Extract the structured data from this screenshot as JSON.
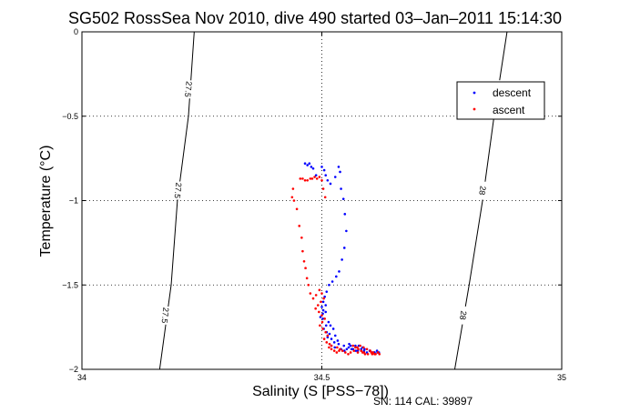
{
  "chart_data": {
    "type": "scatter",
    "title": "SG502 RossSea Nov 2010, dive 490 started 03–Jan–2011 15:14:30",
    "xlabel": "Salinity (S [PSS−78])",
    "ylabel": "Temperature (°C)",
    "footer": "SN: 114  CAL: 39897",
    "xlim": [
      34,
      35
    ],
    "ylim": [
      -2,
      0
    ],
    "xticks": [
      34,
      34.5,
      35
    ],
    "xtick_labels": [
      "34",
      "34.5",
      "35"
    ],
    "yticks": [
      0,
      -0.5,
      -1,
      -1.5,
      -2
    ],
    "ytick_labels": [
      "0",
      "−0.5",
      "−1",
      "−1.5",
      "−2"
    ],
    "grid": true,
    "legend_placement": "upper-right",
    "colors": {
      "descent": "#0000ff",
      "ascent": "#ff0000"
    },
    "contours": [
      {
        "labels": [
          "27.5",
          "27.5",
          "27.5"
        ],
        "points": [
          [
            34.234,
            0
          ],
          [
            34.222,
            -0.5
          ],
          [
            34.199,
            -1
          ],
          [
            34.186,
            -1.5
          ],
          [
            34.162,
            -2
          ]
        ]
      },
      {
        "labels": [
          "28",
          "28",
          "28"
        ],
        "points": [
          [
            34.886,
            0
          ],
          [
            34.859,
            -0.5
          ],
          [
            34.835,
            -1
          ],
          [
            34.807,
            -1.5
          ],
          [
            34.777,
            -2
          ]
        ]
      }
    ],
    "series": [
      {
        "name": "descent",
        "x": [
          34.465,
          34.47,
          34.474,
          34.478,
          34.482,
          34.488,
          34.5,
          34.505,
          34.508,
          34.512,
          34.518,
          34.528,
          34.535,
          34.538,
          34.54,
          34.545,
          34.548,
          34.551,
          34.547,
          34.542,
          34.536,
          34.53,
          34.522,
          34.515,
          34.51,
          34.506,
          34.503,
          34.5,
          34.503,
          34.508,
          34.502,
          34.497,
          34.502,
          34.508,
          34.514,
          34.509,
          34.504,
          34.51,
          34.518,
          34.524,
          34.516,
          34.512,
          34.52,
          34.528,
          34.533,
          34.526,
          34.52,
          34.527,
          34.535,
          34.54,
          34.547,
          34.552,
          34.556,
          34.56,
          34.565,
          34.571,
          34.577,
          34.582,
          34.588,
          34.594,
          34.6,
          34.605,
          34.61,
          34.615,
          34.619,
          34.585,
          34.57,
          34.557,
          34.546,
          34.562,
          34.575,
          34.589,
          34.6,
          34.609,
          34.616
        ],
        "y": [
          -0.78,
          -0.79,
          -0.78,
          -0.8,
          -0.81,
          -0.85,
          -0.8,
          -0.82,
          -0.85,
          -0.88,
          -0.9,
          -0.86,
          -0.8,
          -0.83,
          -0.93,
          -0.99,
          -1.08,
          -1.18,
          -1.28,
          -1.35,
          -1.42,
          -1.45,
          -1.48,
          -1.5,
          -1.54,
          -1.57,
          -1.6,
          -1.63,
          -1.65,
          -1.62,
          -1.67,
          -1.69,
          -1.7,
          -1.66,
          -1.72,
          -1.74,
          -1.76,
          -1.78,
          -1.74,
          -1.76,
          -1.79,
          -1.81,
          -1.82,
          -1.8,
          -1.83,
          -1.84,
          -1.86,
          -1.87,
          -1.85,
          -1.88,
          -1.89,
          -1.88,
          -1.87,
          -1.86,
          -1.88,
          -1.89,
          -1.86,
          -1.88,
          -1.89,
          -1.9,
          -1.89,
          -1.9,
          -1.9,
          -1.89,
          -1.9,
          -1.87,
          -1.86,
          -1.85,
          -1.86,
          -1.88,
          -1.89,
          -1.88,
          -1.89,
          -1.9,
          -1.9
        ]
      },
      {
        "name": "ascent",
        "x": [
          34.455,
          34.46,
          34.465,
          34.47,
          34.476,
          34.48,
          34.485,
          34.49,
          34.495,
          34.5,
          34.503,
          34.507,
          34.44,
          34.438,
          34.442,
          34.448,
          34.453,
          34.458,
          34.46,
          34.463,
          34.466,
          34.469,
          34.472,
          34.476,
          34.482,
          34.488,
          34.495,
          34.5,
          34.504,
          34.498,
          34.492,
          34.487,
          34.494,
          34.5,
          34.506,
          34.501,
          34.496,
          34.502,
          34.508,
          34.512,
          34.505,
          34.51,
          34.516,
          34.52,
          34.515,
          34.52,
          34.526,
          34.531,
          34.536,
          34.532,
          34.538,
          34.543,
          34.549,
          34.555,
          34.56,
          34.567,
          34.574,
          34.58,
          34.587,
          34.594,
          34.601,
          34.607,
          34.612,
          34.617,
          34.62,
          34.61,
          34.603,
          34.596,
          34.588,
          34.582,
          34.576,
          34.57,
          34.565,
          34.575,
          34.59,
          34.605,
          34.585
        ],
        "y": [
          -0.87,
          -0.87,
          -0.88,
          -0.88,
          -0.87,
          -0.87,
          -0.86,
          -0.87,
          -0.86,
          -0.88,
          -0.93,
          -0.98,
          -0.93,
          -0.98,
          -1.0,
          -1.05,
          -1.15,
          -1.22,
          -1.3,
          -1.36,
          -1.4,
          -1.46,
          -1.5,
          -1.55,
          -1.58,
          -1.56,
          -1.53,
          -1.55,
          -1.58,
          -1.6,
          -1.62,
          -1.64,
          -1.66,
          -1.68,
          -1.7,
          -1.72,
          -1.74,
          -1.76,
          -1.78,
          -1.8,
          -1.82,
          -1.84,
          -1.85,
          -1.86,
          -1.87,
          -1.88,
          -1.89,
          -1.9,
          -1.89,
          -1.87,
          -1.88,
          -1.89,
          -1.9,
          -1.91,
          -1.9,
          -1.89,
          -1.87,
          -1.86,
          -1.87,
          -1.88,
          -1.89,
          -1.9,
          -1.91,
          -1.9,
          -1.91,
          -1.91,
          -1.9,
          -1.91,
          -1.9,
          -1.89,
          -1.88,
          -1.87,
          -1.86,
          -1.9,
          -1.91,
          -1.91,
          -1.9
        ]
      }
    ]
  }
}
